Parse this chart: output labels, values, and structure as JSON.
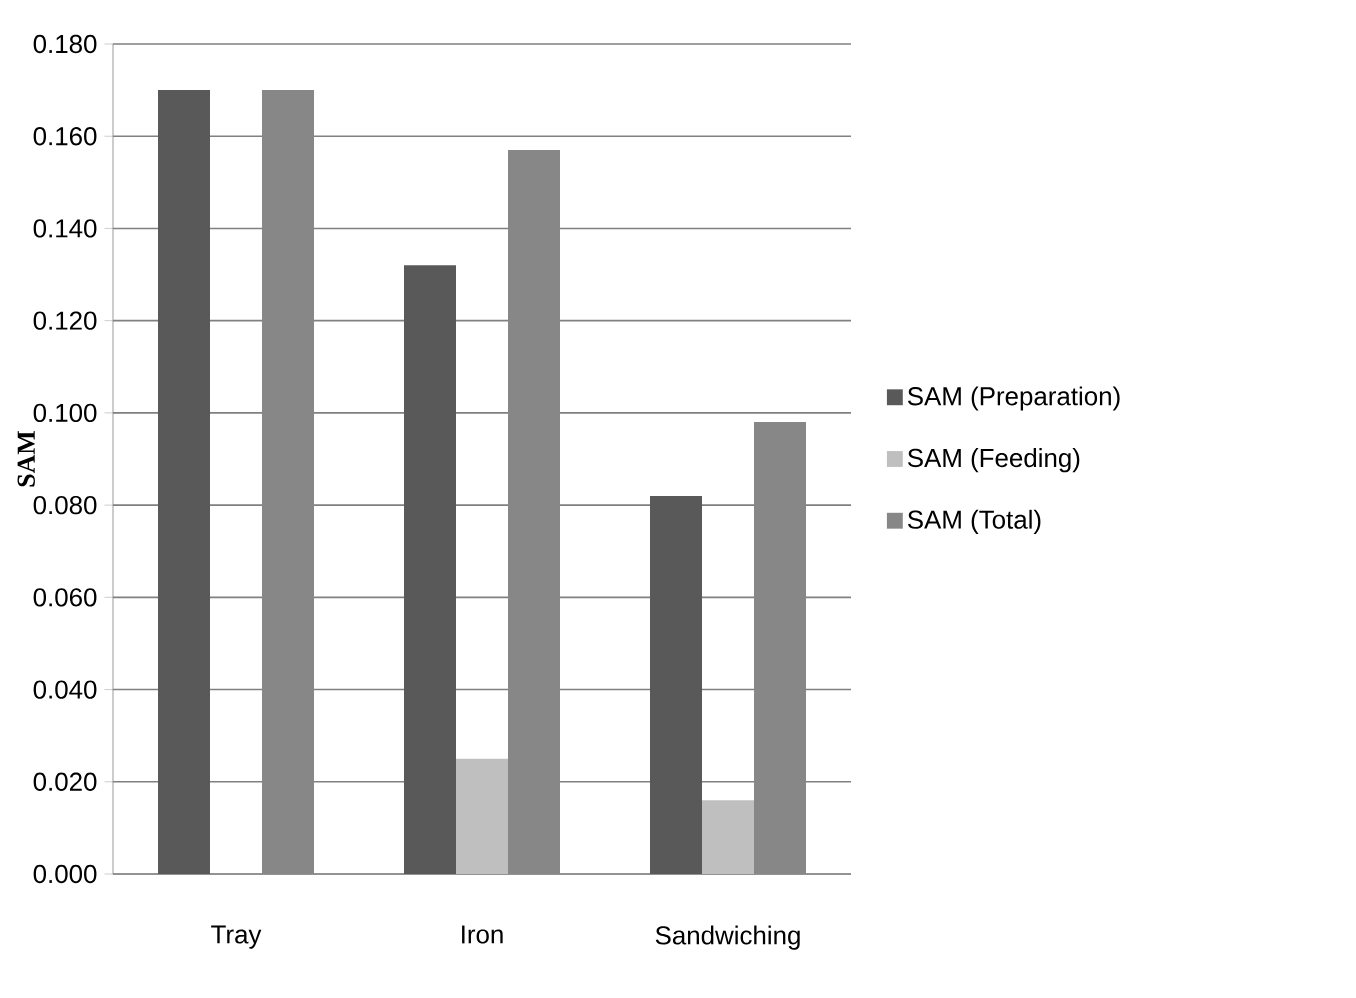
{
  "chart_data": {
    "type": "bar",
    "ylabel": "SAM",
    "categories": [
      "Tray",
      "Iron",
      "Sandwiching"
    ],
    "series": [
      {
        "name": "SAM (Preparation)",
        "color": "#595959",
        "values": [
          0.17,
          0.132,
          0.082
        ]
      },
      {
        "name": "SAM (Feeding)",
        "color": "#bfbfbf",
        "values": [
          null,
          0.025,
          0.016
        ]
      },
      {
        "name": "SAM (Total)",
        "color": "#878787",
        "values": [
          0.17,
          0.157,
          0.098
        ]
      }
    ],
    "ylim": [
      0,
      0.18
    ],
    "yticks": [
      {
        "value": 0,
        "label": "0.000"
      },
      {
        "value": 0.02,
        "label": "0.020"
      },
      {
        "value": 0.04,
        "label": "0.040"
      },
      {
        "value": 0.06,
        "label": "0.060"
      },
      {
        "value": 0.08,
        "label": "0.080"
      },
      {
        "value": 0.1,
        "label": "0.100"
      },
      {
        "value": 0.12,
        "label": "0.120"
      },
      {
        "value": 0.14,
        "label": "0.140"
      },
      {
        "value": 0.16,
        "label": "0.160"
      },
      {
        "value": 0.18,
        "label": "0.180"
      }
    ],
    "grid": "y",
    "legend": "right"
  }
}
